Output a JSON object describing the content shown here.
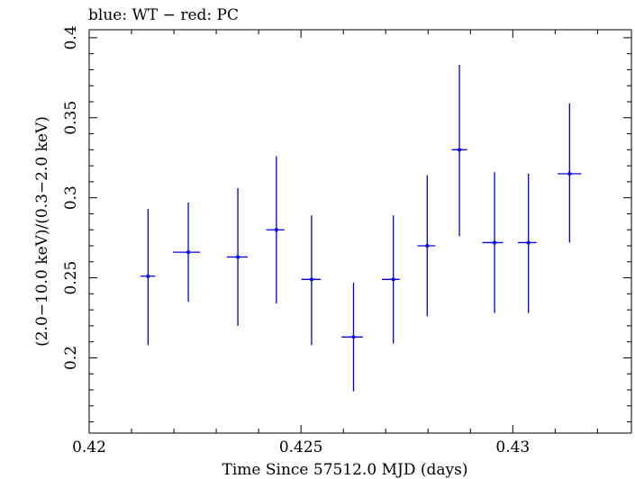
{
  "chart_data": {
    "type": "scatter",
    "title": "blue: WT − red: PC",
    "xlabel": "Time Since 57512.0 MJD (days)",
    "ylabel": "(2.0−10.0 keV)/(0.3−2.0 keV)",
    "xlim": [
      0.42,
      0.4328
    ],
    "ylim": [
      0.153,
      0.405
    ],
    "x_ticks": [
      0.42,
      0.425,
      0.43
    ],
    "x_tick_labels": [
      "0.42",
      "0.425",
      "0.43"
    ],
    "y_ticks": [
      0.2,
      0.25,
      0.3,
      0.35,
      0.4
    ],
    "y_tick_labels": [
      "0.2",
      "0.25",
      "0.3",
      "0.35",
      "0.4"
    ],
    "grid": false,
    "series": [
      {
        "color": "#0000e0",
        "points": [
          {
            "x": 0.42139,
            "y": 0.251,
            "x_lo": 0.42121,
            "x_hi": 0.42156,
            "y_lo": 0.208,
            "y_hi": 0.293
          },
          {
            "x": 0.42234,
            "y": 0.266,
            "x_lo": 0.42198,
            "x_hi": 0.42262,
            "y_lo": 0.235,
            "y_hi": 0.297
          },
          {
            "x": 0.42351,
            "y": 0.263,
            "x_lo": 0.42325,
            "x_hi": 0.42374,
            "y_lo": 0.22,
            "y_hi": 0.306
          },
          {
            "x": 0.42442,
            "y": 0.28,
            "x_lo": 0.42418,
            "x_hi": 0.42461,
            "y_lo": 0.234,
            "y_hi": 0.326
          },
          {
            "x": 0.42525,
            "y": 0.249,
            "x_lo": 0.42501,
            "x_hi": 0.42547,
            "y_lo": 0.208,
            "y_hi": 0.289
          },
          {
            "x": 0.42624,
            "y": 0.213,
            "x_lo": 0.42596,
            "x_hi": 0.42646,
            "y_lo": 0.179,
            "y_hi": 0.247
          },
          {
            "x": 0.42718,
            "y": 0.249,
            "x_lo": 0.42691,
            "x_hi": 0.42733,
            "y_lo": 0.209,
            "y_hi": 0.289
          },
          {
            "x": 0.42798,
            "y": 0.27,
            "x_lo": 0.42775,
            "x_hi": 0.42817,
            "y_lo": 0.226,
            "y_hi": 0.314
          },
          {
            "x": 0.42874,
            "y": 0.33,
            "x_lo": 0.42856,
            "x_hi": 0.42892,
            "y_lo": 0.276,
            "y_hi": 0.383
          },
          {
            "x": 0.42957,
            "y": 0.272,
            "x_lo": 0.42928,
            "x_hi": 0.42977,
            "y_lo": 0.228,
            "y_hi": 0.316
          },
          {
            "x": 0.43037,
            "y": 0.272,
            "x_lo": 0.43012,
            "x_hi": 0.43056,
            "y_lo": 0.228,
            "y_hi": 0.315
          },
          {
            "x": 0.43134,
            "y": 0.315,
            "x_lo": 0.43106,
            "x_hi": 0.43162,
            "y_lo": 0.272,
            "y_hi": 0.359
          }
        ]
      }
    ]
  }
}
